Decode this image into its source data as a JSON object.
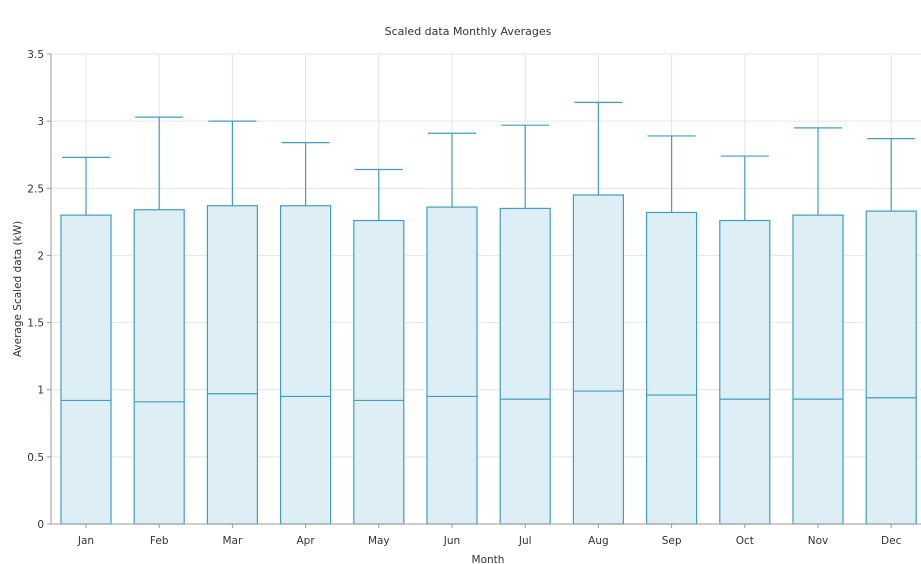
{
  "chart_data": {
    "type": "box",
    "title": "Scaled data Monthly Averages",
    "xlabel": "Month",
    "ylabel": "Average Scaled data (kW)",
    "ylim": [
      0,
      3.5
    ],
    "yticks": [
      0,
      0.5,
      1,
      1.5,
      2,
      2.5,
      3,
      3.5
    ],
    "ytick_labels": [
      "0",
      "0.5",
      "1",
      "1.5",
      "2",
      "2.5",
      "3",
      "3.5"
    ],
    "grid": true,
    "categories": [
      "Jan",
      "Feb",
      "Mar",
      "Apr",
      "May",
      "Jun",
      "Jul",
      "Aug",
      "Sep",
      "Oct",
      "Nov",
      "Dec"
    ],
    "series": [
      {
        "min": [
          0,
          0,
          0,
          0,
          0,
          0,
          0,
          0,
          0,
          0,
          0,
          0
        ],
        "q1": [
          0,
          0,
          0,
          0,
          0,
          0,
          0,
          0,
          0,
          0,
          0,
          0
        ],
        "median": [
          0.92,
          0.91,
          0.97,
          0.95,
          0.92,
          0.95,
          0.93,
          0.99,
          0.96,
          0.93,
          0.93,
          0.94
        ],
        "q3": [
          2.3,
          2.34,
          2.37,
          2.37,
          2.26,
          2.36,
          2.35,
          2.45,
          2.32,
          2.26,
          2.3,
          2.33
        ],
        "max": [
          2.73,
          3.03,
          3.0,
          2.84,
          2.64,
          2.91,
          2.97,
          3.14,
          2.89,
          2.74,
          2.95,
          2.87
        ]
      }
    ],
    "colors": {
      "box_fill": "#ddeef5",
      "box_stroke": "#3f9fc0",
      "grid": "#e4e4e4",
      "axis": "#999999"
    }
  }
}
